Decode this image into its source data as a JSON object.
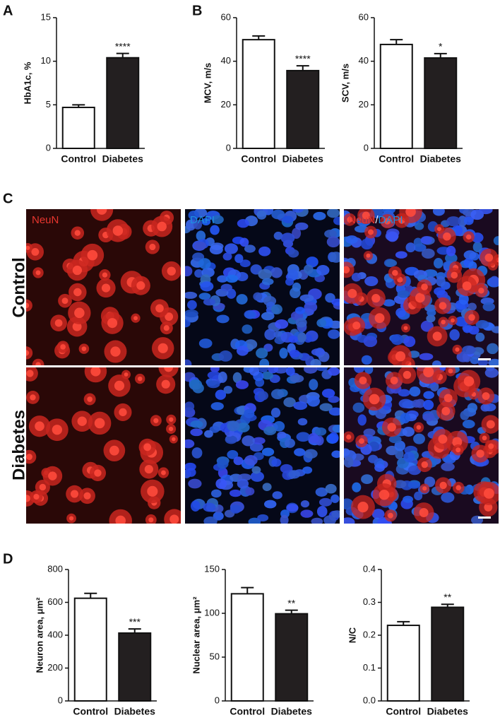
{
  "panels": [
    "A",
    "B",
    "C",
    "D"
  ],
  "micrographs": {
    "rows": [
      "Control",
      "Diabetes"
    ],
    "channels": [
      "NeuN",
      "DAPI"
    ],
    "separator": "/"
  },
  "chart_data": [
    {
      "type": "bar",
      "ylabel": "HbA1c, %",
      "categories": [
        "Control",
        "Diabetes"
      ],
      "values": [
        4.7,
        10.4
      ],
      "errors": [
        0.3,
        0.5
      ],
      "colors": [
        "#ffffff",
        "#231f20"
      ],
      "annotation": "****",
      "ylim": [
        0,
        15
      ],
      "yticks": [
        0,
        5,
        10,
        15
      ]
    },
    {
      "type": "bar",
      "ylabel": "MCV, m/s",
      "categories": [
        "Control",
        "Diabetes"
      ],
      "values": [
        49.9,
        35.7
      ],
      "errors": [
        1.7,
        2.2
      ],
      "colors": [
        "#ffffff",
        "#231f20"
      ],
      "annotation": "****",
      "ylim": [
        0,
        60
      ],
      "yticks": [
        0,
        20,
        40,
        60
      ]
    },
    {
      "type": "bar",
      "ylabel": "SCV, m/s",
      "categories": [
        "Control",
        "Diabetes"
      ],
      "values": [
        47.7,
        41.5
      ],
      "errors": [
        2.2,
        2.0
      ],
      "colors": [
        "#ffffff",
        "#231f20"
      ],
      "annotation": "*",
      "ylim": [
        0,
        60
      ],
      "yticks": [
        0,
        20,
        40,
        60
      ]
    },
    {
      "type": "bar",
      "ylabel": "Neuron area, μm²",
      "categories": [
        "Control",
        "Diabetes"
      ],
      "values": [
        625,
        413
      ],
      "errors": [
        30,
        25
      ],
      "colors": [
        "#ffffff",
        "#231f20"
      ],
      "annotation": "***",
      "ylim": [
        0,
        800
      ],
      "yticks": [
        0,
        200,
        400,
        600,
        800
      ]
    },
    {
      "type": "bar",
      "ylabel": "Nuclear area, μm²",
      "categories": [
        "Control",
        "Diabetes"
      ],
      "values": [
        122.3,
        99.5
      ],
      "errors": [
        7,
        4
      ],
      "colors": [
        "#ffffff",
        "#231f20"
      ],
      "annotation": "**",
      "ylim": [
        0,
        150
      ],
      "yticks": [
        0,
        50,
        100,
        150
      ]
    },
    {
      "type": "bar",
      "ylabel": "N/C",
      "categories": [
        "Control",
        "Diabetes"
      ],
      "values": [
        0.23,
        0.285
      ],
      "errors": [
        0.011,
        0.009
      ],
      "colors": [
        "#ffffff",
        "#231f20"
      ],
      "annotation": "**",
      "ylim": [
        0,
        0.4
      ],
      "yticks": [
        {
          "value": 0,
          "label": "0.0"
        },
        0.1,
        0.2,
        0.3,
        0.4
      ]
    }
  ]
}
